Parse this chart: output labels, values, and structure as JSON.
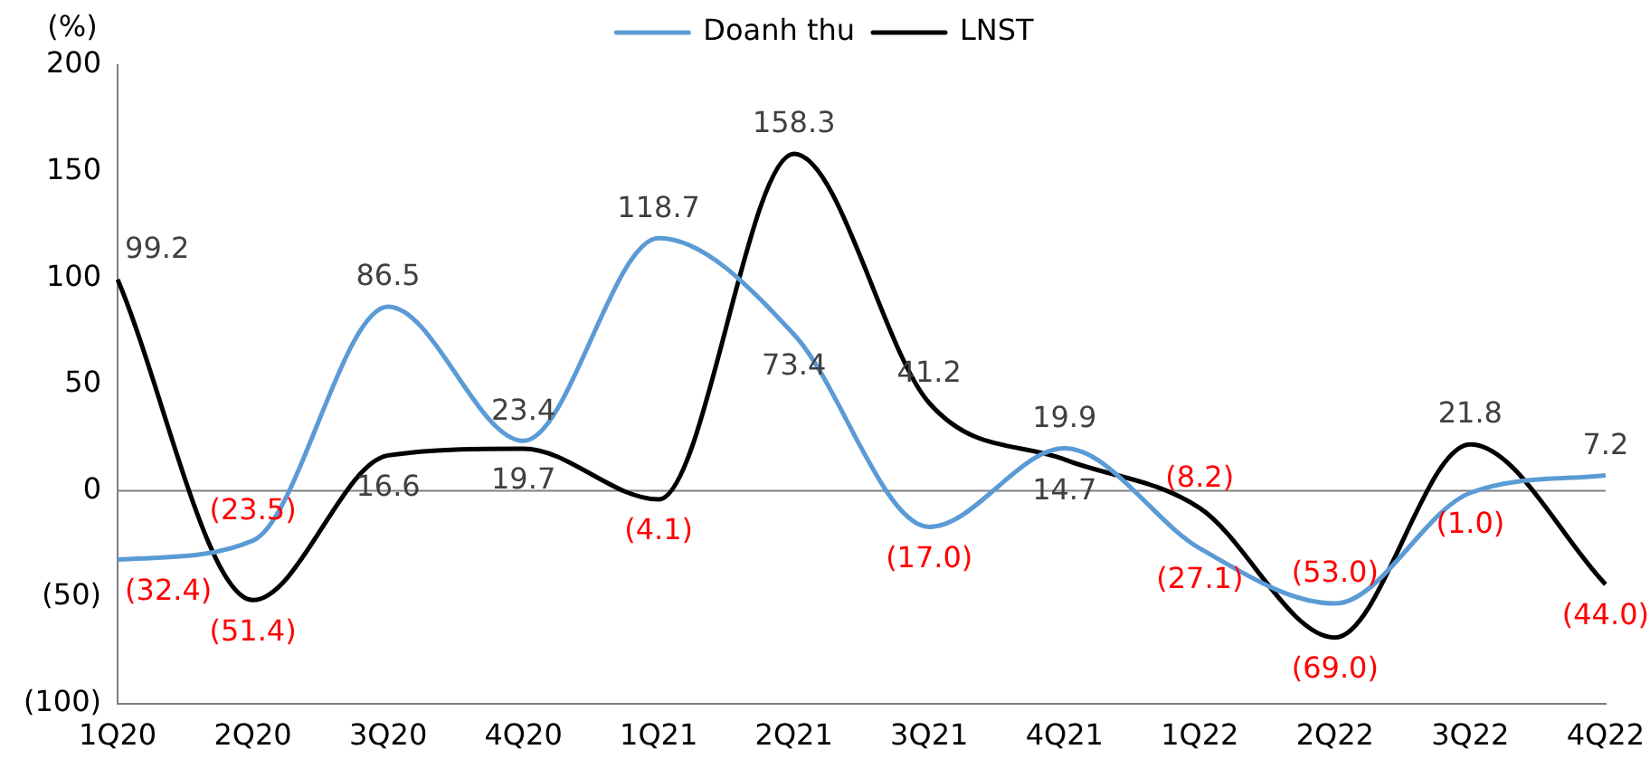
{
  "chart_data": {
    "type": "line",
    "ylabel": "(%)",
    "legend": "top",
    "grid": false,
    "marker": "none",
    "line_style": "solid",
    "categories": [
      "1Q20",
      "2Q20",
      "3Q20",
      "4Q20",
      "1Q21",
      "2Q21",
      "3Q21",
      "4Q21",
      "1Q22",
      "2Q22",
      "3Q22",
      "4Q22"
    ],
    "ylim": [
      -100,
      200
    ],
    "ref_lines": [
      {
        "axis": "y",
        "value": 0,
        "color": "#7f7f7f"
      }
    ],
    "yticks": [
      {
        "value": -100,
        "label": "(100)"
      },
      {
        "value": -50,
        "label": "(50)"
      },
      0,
      50,
      100,
      150,
      200
    ],
    "series": [
      {
        "name": "Doanh thu",
        "color": "#5b9bd5",
        "values": [
          -32.4,
          -23.5,
          86.5,
          23.4,
          118.7,
          73.4,
          -17.0,
          19.9,
          -27.1,
          -53.0,
          -1.0,
          7.2
        ],
        "value_labels": [
          "(32.4)",
          "(23.5)",
          "86.5",
          "23.4",
          "118.7",
          "73.4",
          "(17.0)",
          "19.9",
          "(27.1)",
          "(53.0)",
          "(1.0)",
          "7.2"
        ]
      },
      {
        "name": "LNST",
        "color": "#000000",
        "values": [
          99.2,
          -51.4,
          16.6,
          19.7,
          -4.1,
          158.3,
          41.2,
          14.7,
          -8.2,
          -69.0,
          21.8,
          -44.0
        ],
        "value_labels": [
          "99.2",
          "(51.4)",
          "16.6",
          "19.7",
          "(4.1)",
          "158.3",
          "41.2",
          "14.7",
          "(8.2)",
          "(69.0)",
          "21.8",
          "(44.0)"
        ]
      }
    ]
  }
}
